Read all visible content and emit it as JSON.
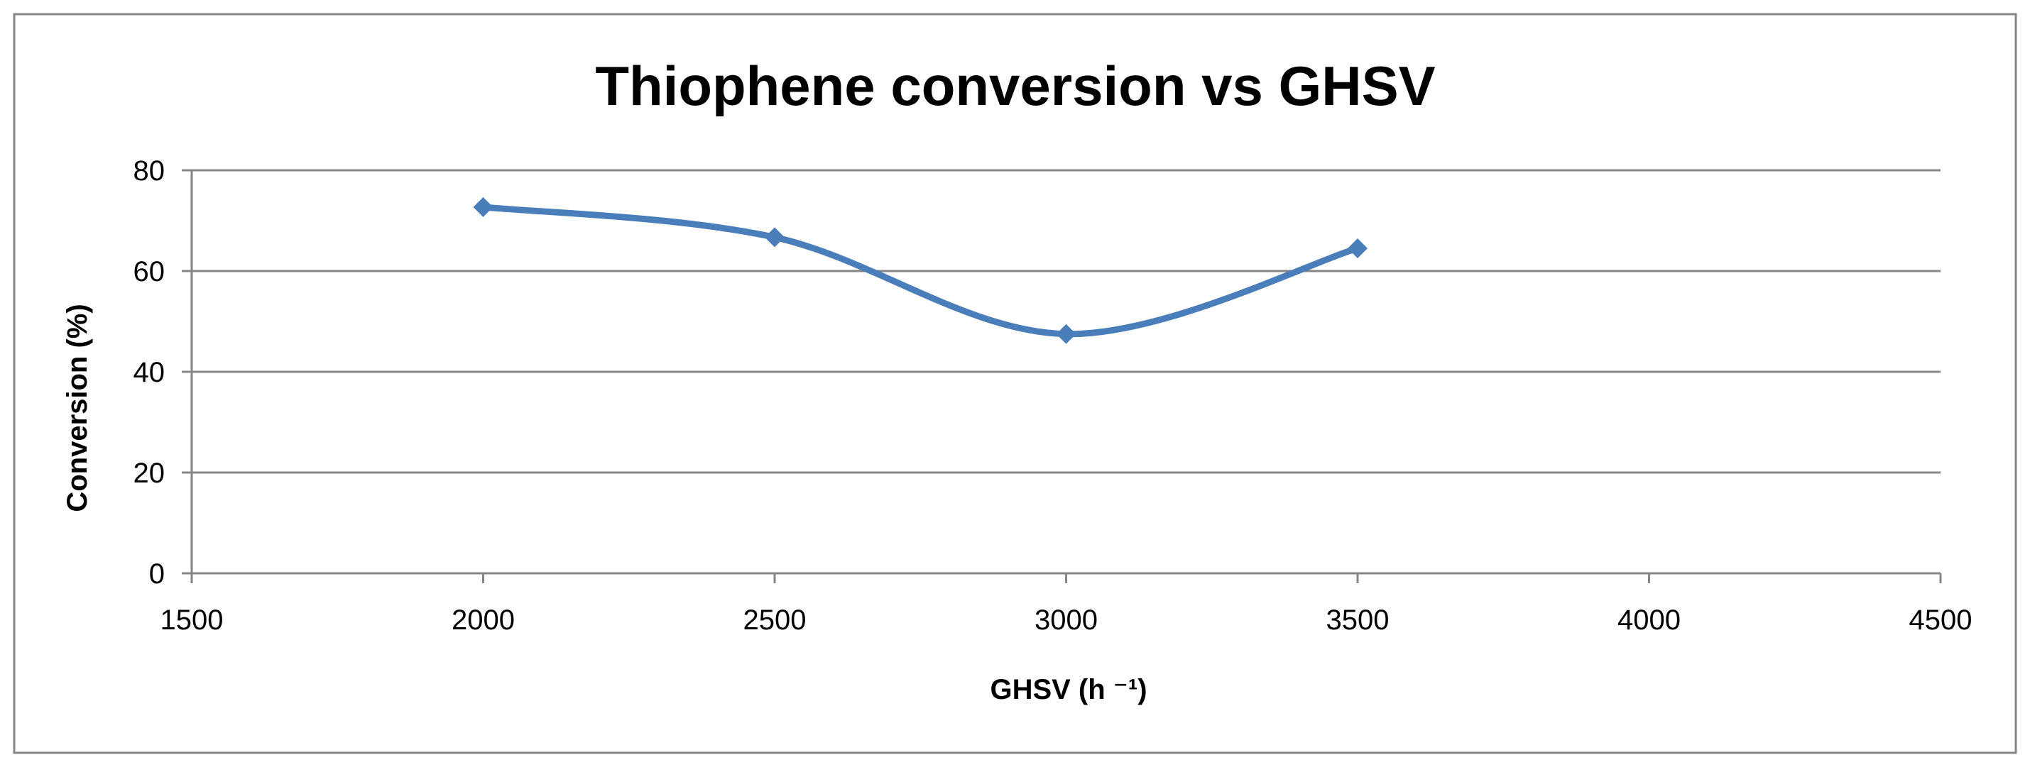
{
  "chart_data": {
    "type": "line",
    "title": "Thiophene conversion vs GHSV",
    "xlabel": "GHSV (h ⁻¹)",
    "ylabel": "Conversion (%)",
    "xlim": [
      1500,
      4500
    ],
    "ylim": [
      0,
      80
    ],
    "x_ticks": [
      1500,
      2000,
      2500,
      3000,
      3500,
      4000,
      4500
    ],
    "y_ticks": [
      0,
      20,
      40,
      60,
      80
    ],
    "grid": true,
    "legend": "none",
    "smoothed": true,
    "marker": "diamond",
    "series": [
      {
        "x": [
          2000,
          2500,
          3000,
          3500
        ],
        "values": [
          72.7,
          66.7,
          47.5,
          64.5
        ],
        "color": "#4a7ebb"
      }
    ]
  }
}
